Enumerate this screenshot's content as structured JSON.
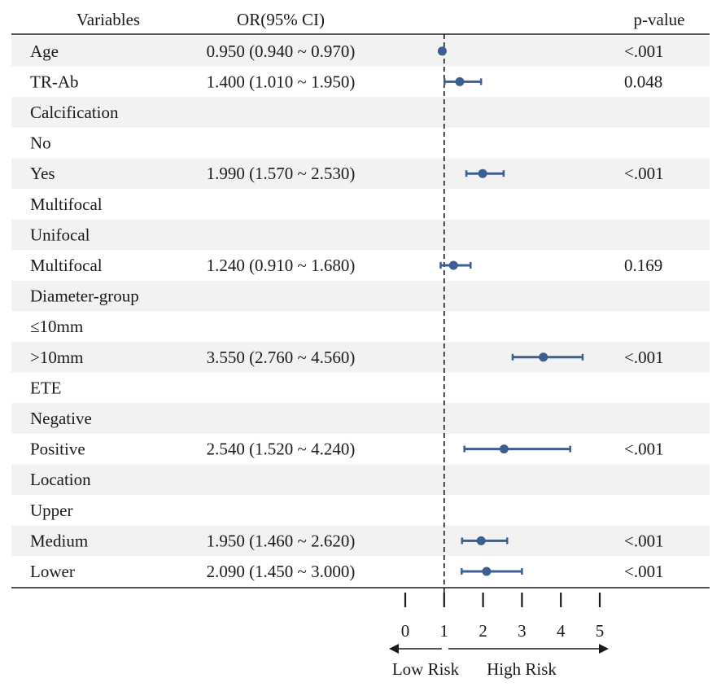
{
  "chart_data": {
    "type": "forest",
    "headers": {
      "variable": "Variables",
      "or": "OR(95% CI)",
      "p": "p-value"
    },
    "reference_line": 1,
    "xaxis": {
      "ticks": [
        0,
        1,
        2,
        3,
        4,
        5
      ],
      "range": [
        0,
        5
      ]
    },
    "direction_labels": {
      "low": "Low Risk",
      "high": "High Risk"
    },
    "colors": {
      "marker": "#3c5e91",
      "stripe": "#f2f2f2",
      "text": "#1a1a1a"
    },
    "rows": [
      {
        "label": "Age",
        "or_text": "0.950 (0.940 ~ 0.970)",
        "or": 0.95,
        "lower": 0.94,
        "upper": 0.97,
        "p": "<.001"
      },
      {
        "label": "TR-Ab",
        "or_text": "1.400 (1.010 ~ 1.950)",
        "or": 1.4,
        "lower": 1.01,
        "upper": 1.95,
        "p": "0.048"
      },
      {
        "label": "Calcification",
        "or_text": "",
        "or": null,
        "lower": null,
        "upper": null,
        "p": ""
      },
      {
        "label": "No",
        "or_text": "",
        "or": null,
        "lower": null,
        "upper": null,
        "p": ""
      },
      {
        "label": "Yes",
        "or_text": "1.990 (1.570 ~ 2.530)",
        "or": 1.99,
        "lower": 1.57,
        "upper": 2.53,
        "p": "<.001"
      },
      {
        "label": "Multifocal",
        "or_text": "",
        "or": null,
        "lower": null,
        "upper": null,
        "p": ""
      },
      {
        "label": "Unifocal",
        "or_text": "",
        "or": null,
        "lower": null,
        "upper": null,
        "p": ""
      },
      {
        "label": "Multifocal",
        "or_text": "1.240 (0.910 ~ 1.680)",
        "or": 1.24,
        "lower": 0.91,
        "upper": 1.68,
        "p": "0.169"
      },
      {
        "label": "Diameter-group",
        "or_text": "",
        "or": null,
        "lower": null,
        "upper": null,
        "p": ""
      },
      {
        "label": "≤10mm",
        "or_text": "",
        "or": null,
        "lower": null,
        "upper": null,
        "p": ""
      },
      {
        "label": ">10mm",
        "or_text": "3.550 (2.760 ~ 4.560)",
        "or": 3.55,
        "lower": 2.76,
        "upper": 4.56,
        "p": "<.001"
      },
      {
        "label": "ETE",
        "or_text": "",
        "or": null,
        "lower": null,
        "upper": null,
        "p": ""
      },
      {
        "label": "Negative",
        "or_text": "",
        "or": null,
        "lower": null,
        "upper": null,
        "p": ""
      },
      {
        "label": "Positive",
        "or_text": "2.540 (1.520 ~ 4.240)",
        "or": 2.54,
        "lower": 1.52,
        "upper": 4.24,
        "p": "<.001"
      },
      {
        "label": "Location",
        "or_text": "",
        "or": null,
        "lower": null,
        "upper": null,
        "p": ""
      },
      {
        "label": "Upper",
        "or_text": "",
        "or": null,
        "lower": null,
        "upper": null,
        "p": ""
      },
      {
        "label": "Medium",
        "or_text": "1.950 (1.460 ~ 2.620)",
        "or": 1.95,
        "lower": 1.46,
        "upper": 2.62,
        "p": "<.001"
      },
      {
        "label": "Lower",
        "or_text": "2.090 (1.450 ~ 3.000)",
        "or": 2.09,
        "lower": 1.45,
        "upper": 3.0,
        "p": "<.001"
      }
    ]
  }
}
